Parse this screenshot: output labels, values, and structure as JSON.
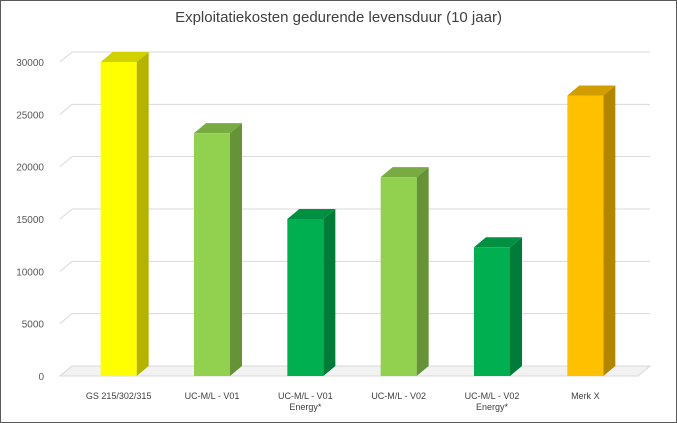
{
  "chart_data": {
    "type": "bar",
    "title": "Exploitatiekosten gedurende levensduur (10 jaar)",
    "categories": [
      [
        "GS 215/302/315"
      ],
      [
        "UC-M/L - V01"
      ],
      [
        "UC-M/L - V01",
        "Energy*"
      ],
      [
        "UC-M/L - V02"
      ],
      [
        "UC-M/L - V02",
        "Energy*"
      ],
      [
        "Merk X"
      ]
    ],
    "values": [
      30000,
      23200,
      15000,
      19000,
      12300,
      26800
    ],
    "colors": [
      "#ffff00",
      "#92d050",
      "#00b050",
      "#92d050",
      "#00b050",
      "#ffc000"
    ],
    "yticks": [
      "0",
      "5000",
      "10000",
      "15000",
      "20000",
      "25000",
      "30000"
    ],
    "ylim": [
      0,
      30000
    ],
    "grid": true,
    "style": "3d-column"
  }
}
